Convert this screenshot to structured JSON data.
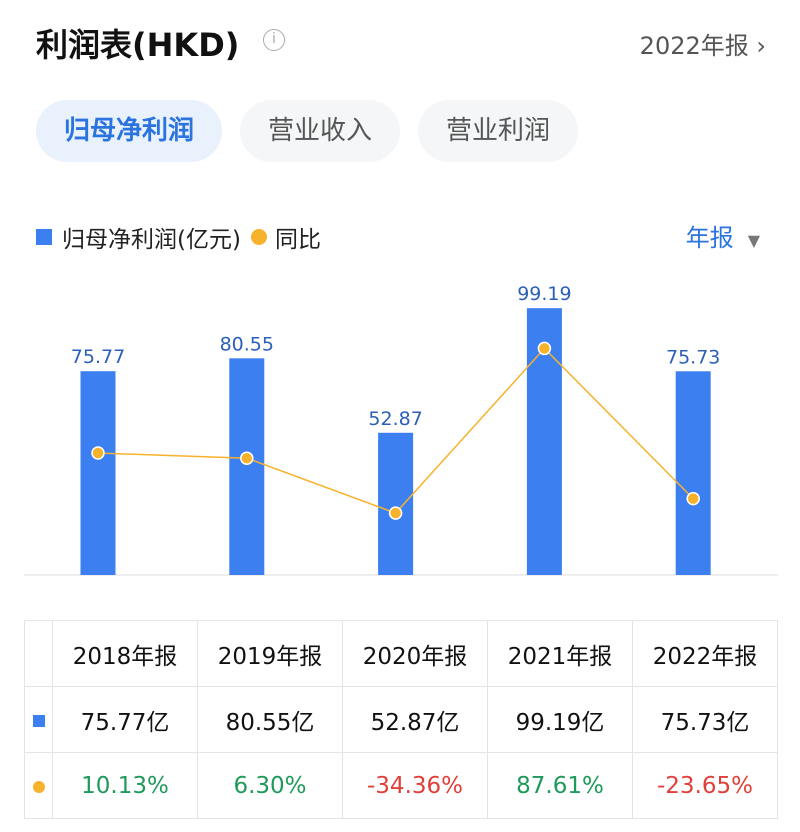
{
  "header": {
    "title": "利润表(HKD)",
    "info_icon": "info-icon",
    "period": "2022年报",
    "chevron": "›"
  },
  "tabs": [
    {
      "label": "归母净利润",
      "active": true
    },
    {
      "label": "营业收入",
      "active": false
    },
    {
      "label": "营业利润",
      "active": false
    }
  ],
  "legend": {
    "bar_label": "归母净利润(亿元)",
    "line_label": "同比"
  },
  "frequency": {
    "label": "年报",
    "caret": "▼"
  },
  "colors": {
    "bar": "#3b7ff0",
    "line": "#f7b22c",
    "positive": "#1f9a5a",
    "negative": "#e0403a",
    "accent": "#2b74e0"
  },
  "chart_data": {
    "type": "bar+line",
    "categories": [
      "2018年报",
      "2019年报",
      "2020年报",
      "2021年报",
      "2022年报"
    ],
    "series": [
      {
        "name": "归母净利润(亿元)",
        "type": "bar",
        "values": [
          75.77,
          80.55,
          52.87,
          99.19,
          75.73
        ],
        "labels": [
          "75.77",
          "80.55",
          "52.87",
          "99.19",
          "75.73"
        ]
      },
      {
        "name": "同比",
        "type": "line",
        "values": [
          10.13,
          6.3,
          -34.36,
          87.61,
          -23.65
        ]
      }
    ],
    "grid": false
  },
  "table": {
    "headers": [
      "2018年报",
      "2019年报",
      "2020年报",
      "2021年报",
      "2022年报"
    ],
    "profit_row": [
      "75.77亿",
      "80.55亿",
      "52.87亿",
      "99.19亿",
      "75.73亿"
    ],
    "yoy_row": [
      "10.13%",
      "6.30%",
      "-34.36%",
      "87.61%",
      "-23.65%"
    ]
  }
}
